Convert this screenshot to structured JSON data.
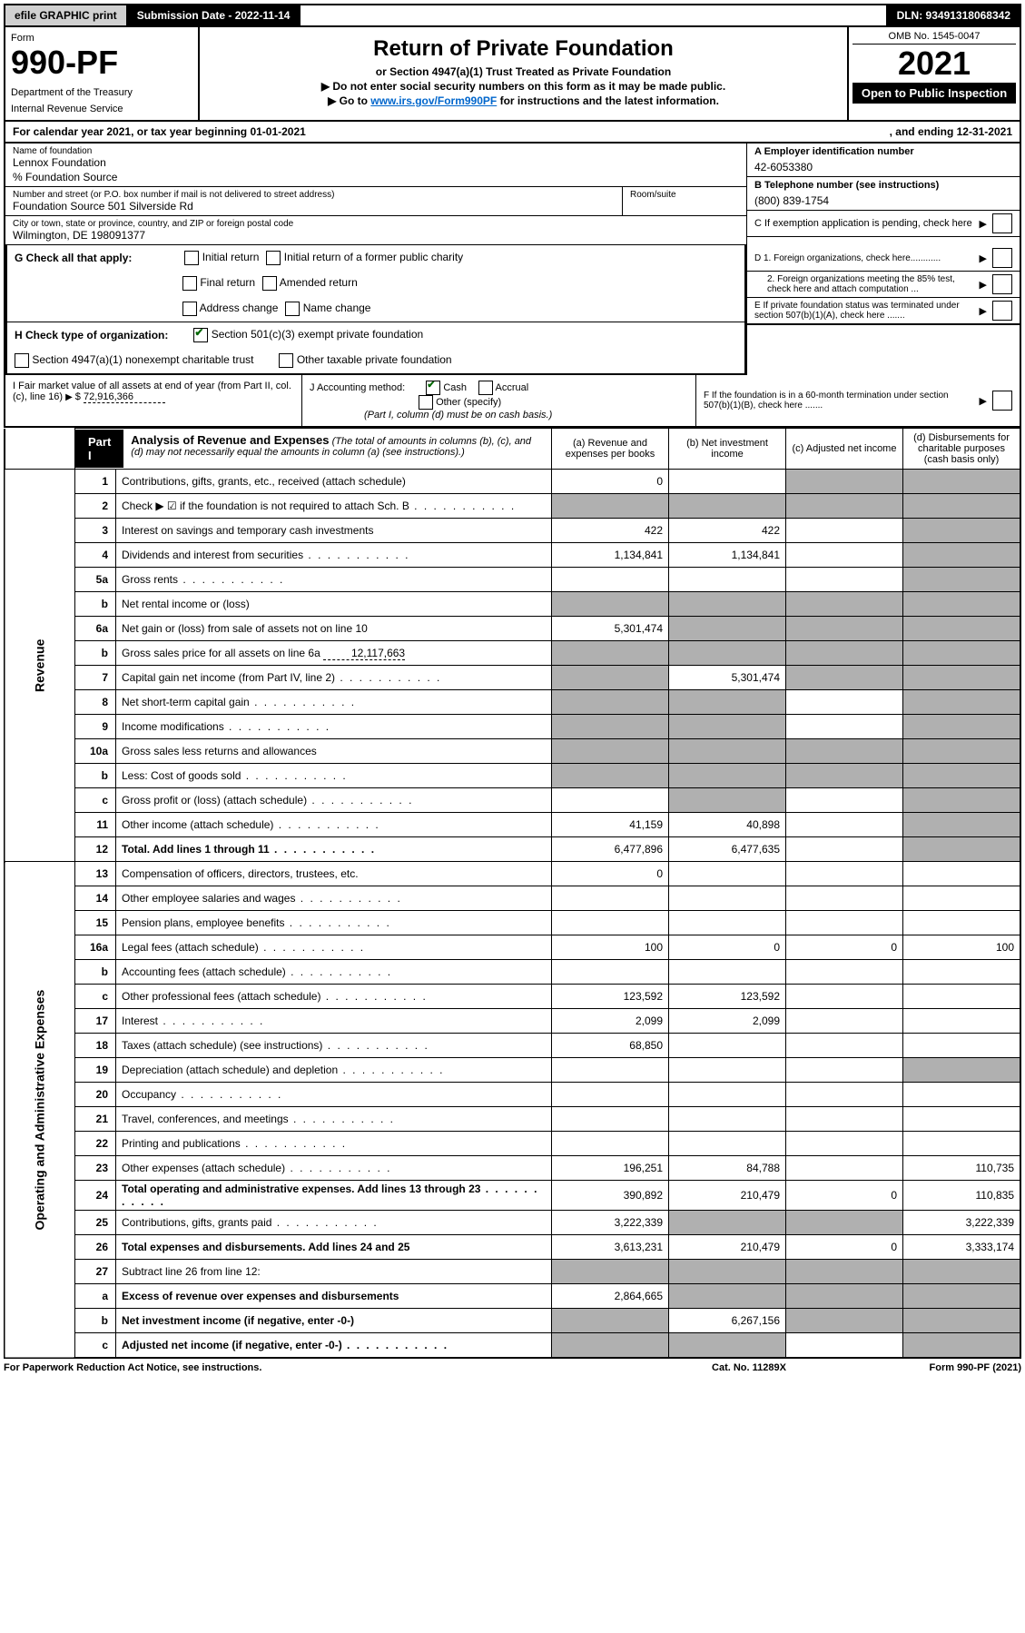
{
  "topbar": {
    "efile": "efile GRAPHIC print",
    "submission_label": "Submission Date - 2022-11-14",
    "dln": "DLN: 93491318068342"
  },
  "header": {
    "form_label": "Form",
    "form_number": "990-PF",
    "dept1": "Department of the Treasury",
    "dept2": "Internal Revenue Service",
    "title": "Return of Private Foundation",
    "subtitle": "or Section 4947(a)(1) Trust Treated as Private Foundation",
    "note1": "▶ Do not enter social security numbers on this form as it may be made public.",
    "note2_pre": "▶ Go to ",
    "note2_link": "www.irs.gov/Form990PF",
    "note2_post": " for instructions and the latest information.",
    "omb": "OMB No. 1545-0047",
    "year": "2021",
    "open": "Open to Public Inspection"
  },
  "calendar": {
    "left": "For calendar year 2021, or tax year beginning 01-01-2021",
    "right": ", and ending 12-31-2021"
  },
  "info": {
    "name_label": "Name of foundation",
    "name": "Lennox Foundation",
    "care_of": "% Foundation Source",
    "street_label": "Number and street (or P.O. box number if mail is not delivered to street address)",
    "street": "Foundation Source 501 Silverside Rd",
    "room_label": "Room/suite",
    "city_label": "City or town, state or province, country, and ZIP or foreign postal code",
    "city": "Wilmington, DE  198091377",
    "ein_label": "A Employer identification number",
    "ein": "42-6053380",
    "phone_label": "B Telephone number (see instructions)",
    "phone": "(800) 839-1754",
    "c_label": "C If exemption application is pending, check here"
  },
  "checks": {
    "g_label": "G Check all that apply:",
    "g1": "Initial return",
    "g2": "Initial return of a former public charity",
    "g3": "Final return",
    "g4": "Amended return",
    "g5": "Address change",
    "g6": "Name change",
    "h_label": "H Check type of organization:",
    "h1": "Section 501(c)(3) exempt private foundation",
    "h2": "Section 4947(a)(1) nonexempt charitable trust",
    "h3": "Other taxable private foundation",
    "d1": "D 1. Foreign organizations, check here............",
    "d2": "2. Foreign organizations meeting the 85% test, check here and attach computation ...",
    "e": "E  If private foundation status was terminated under section 507(b)(1)(A), check here .......",
    "f": "F  If the foundation is in a 60-month termination under section 507(b)(1)(B), check here .......",
    "i_label": "I Fair market value of all assets at end of year (from Part II, col. (c), line 16)",
    "i_val": "72,916,366",
    "j_label": "J Accounting method:",
    "j1": "Cash",
    "j2": "Accrual",
    "j3": "Other (specify)",
    "j_note": "(Part I, column (d) must be on cash basis.)"
  },
  "part1": {
    "label": "Part I",
    "title": "Analysis of Revenue and Expenses",
    "subtitle": "(The total of amounts in columns (b), (c), and (d) may not necessarily equal the amounts in column (a) (see instructions).)",
    "col_a": "(a) Revenue and expenses per books",
    "col_b": "(b) Net investment income",
    "col_c": "(c) Adjusted net income",
    "col_d": "(d) Disbursements for charitable purposes (cash basis only)"
  },
  "sections": {
    "revenue": "Revenue",
    "expenses": "Operating and Administrative Expenses"
  },
  "rows": [
    {
      "n": "1",
      "desc": "Contributions, gifts, grants, etc., received (attach schedule)",
      "a": "0",
      "b": "",
      "c": "s",
      "d": "s"
    },
    {
      "n": "2",
      "desc": "Check ▶ ☑ if the foundation is not required to attach Sch. B",
      "a": "s",
      "b": "s",
      "c": "s",
      "d": "s",
      "dots": true
    },
    {
      "n": "3",
      "desc": "Interest on savings and temporary cash investments",
      "a": "422",
      "b": "422",
      "c": "",
      "d": "s"
    },
    {
      "n": "4",
      "desc": "Dividends and interest from securities",
      "a": "1,134,841",
      "b": "1,134,841",
      "c": "",
      "d": "s",
      "dots": true
    },
    {
      "n": "5a",
      "desc": "Gross rents",
      "a": "",
      "b": "",
      "c": "",
      "d": "s",
      "dots": true
    },
    {
      "n": "b",
      "desc": "Net rental income or (loss)",
      "a": "s",
      "b": "s",
      "c": "s",
      "d": "s"
    },
    {
      "n": "6a",
      "desc": "Net gain or (loss) from sale of assets not on line 10",
      "a": "5,301,474",
      "b": "s",
      "c": "s",
      "d": "s"
    },
    {
      "n": "b",
      "desc": "Gross sales price for all assets on line 6a",
      "inline": "12,117,663",
      "a": "s",
      "b": "s",
      "c": "s",
      "d": "s"
    },
    {
      "n": "7",
      "desc": "Capital gain net income (from Part IV, line 2)",
      "a": "s",
      "b": "5,301,474",
      "c": "s",
      "d": "s",
      "dots": true
    },
    {
      "n": "8",
      "desc": "Net short-term capital gain",
      "a": "s",
      "b": "s",
      "c": "",
      "d": "s",
      "dots": true
    },
    {
      "n": "9",
      "desc": "Income modifications",
      "a": "s",
      "b": "s",
      "c": "",
      "d": "s",
      "dots": true
    },
    {
      "n": "10a",
      "desc": "Gross sales less returns and allowances",
      "a": "s",
      "b": "s",
      "c": "s",
      "d": "s"
    },
    {
      "n": "b",
      "desc": "Less: Cost of goods sold",
      "a": "s",
      "b": "s",
      "c": "s",
      "d": "s",
      "dots": true
    },
    {
      "n": "c",
      "desc": "Gross profit or (loss) (attach schedule)",
      "a": "",
      "b": "s",
      "c": "",
      "d": "s",
      "dots": true
    },
    {
      "n": "11",
      "desc": "Other income (attach schedule)",
      "a": "41,159",
      "b": "40,898",
      "c": "",
      "d": "s",
      "dots": true
    },
    {
      "n": "12",
      "desc": "Total. Add lines 1 through 11",
      "a": "6,477,896",
      "b": "6,477,635",
      "c": "",
      "d": "s",
      "bold": true,
      "dots": true
    },
    {
      "n": "13",
      "desc": "Compensation of officers, directors, trustees, etc.",
      "a": "0",
      "b": "",
      "c": "",
      "d": ""
    },
    {
      "n": "14",
      "desc": "Other employee salaries and wages",
      "a": "",
      "b": "",
      "c": "",
      "d": "",
      "dots": true
    },
    {
      "n": "15",
      "desc": "Pension plans, employee benefits",
      "a": "",
      "b": "",
      "c": "",
      "d": "",
      "dots": true
    },
    {
      "n": "16a",
      "desc": "Legal fees (attach schedule)",
      "a": "100",
      "b": "0",
      "c": "0",
      "d": "100",
      "dots": true
    },
    {
      "n": "b",
      "desc": "Accounting fees (attach schedule)",
      "a": "",
      "b": "",
      "c": "",
      "d": "",
      "dots": true
    },
    {
      "n": "c",
      "desc": "Other professional fees (attach schedule)",
      "a": "123,592",
      "b": "123,592",
      "c": "",
      "d": "",
      "dots": true
    },
    {
      "n": "17",
      "desc": "Interest",
      "a": "2,099",
      "b": "2,099",
      "c": "",
      "d": "",
      "dots": true
    },
    {
      "n": "18",
      "desc": "Taxes (attach schedule) (see instructions)",
      "a": "68,850",
      "b": "",
      "c": "",
      "d": "",
      "dots": true
    },
    {
      "n": "19",
      "desc": "Depreciation (attach schedule) and depletion",
      "a": "",
      "b": "",
      "c": "",
      "d": "s",
      "dots": true
    },
    {
      "n": "20",
      "desc": "Occupancy",
      "a": "",
      "b": "",
      "c": "",
      "d": "",
      "dots": true
    },
    {
      "n": "21",
      "desc": "Travel, conferences, and meetings",
      "a": "",
      "b": "",
      "c": "",
      "d": "",
      "dots": true
    },
    {
      "n": "22",
      "desc": "Printing and publications",
      "a": "",
      "b": "",
      "c": "",
      "d": "",
      "dots": true
    },
    {
      "n": "23",
      "desc": "Other expenses (attach schedule)",
      "a": "196,251",
      "b": "84,788",
      "c": "",
      "d": "110,735",
      "dots": true
    },
    {
      "n": "24",
      "desc": "Total operating and administrative expenses. Add lines 13 through 23",
      "a": "390,892",
      "b": "210,479",
      "c": "0",
      "d": "110,835",
      "bold": true,
      "dots": true
    },
    {
      "n": "25",
      "desc": "Contributions, gifts, grants paid",
      "a": "3,222,339",
      "b": "s",
      "c": "s",
      "d": "3,222,339",
      "dots": true
    },
    {
      "n": "26",
      "desc": "Total expenses and disbursements. Add lines 24 and 25",
      "a": "3,613,231",
      "b": "210,479",
      "c": "0",
      "d": "3,333,174",
      "bold": true
    },
    {
      "n": "27",
      "desc": "Subtract line 26 from line 12:",
      "a": "s",
      "b": "s",
      "c": "s",
      "d": "s"
    },
    {
      "n": "a",
      "desc": "Excess of revenue over expenses and disbursements",
      "a": "2,864,665",
      "b": "s",
      "c": "s",
      "d": "s",
      "bold": true
    },
    {
      "n": "b",
      "desc": "Net investment income (if negative, enter -0-)",
      "a": "s",
      "b": "6,267,156",
      "c": "s",
      "d": "s",
      "bold": true
    },
    {
      "n": "c",
      "desc": "Adjusted net income (if negative, enter -0-)",
      "a": "s",
      "b": "s",
      "c": "",
      "d": "s",
      "bold": true,
      "dots": true
    }
  ],
  "footer": {
    "left": "For Paperwork Reduction Act Notice, see instructions.",
    "mid": "Cat. No. 11289X",
    "right": "Form 990-PF (2021)"
  }
}
